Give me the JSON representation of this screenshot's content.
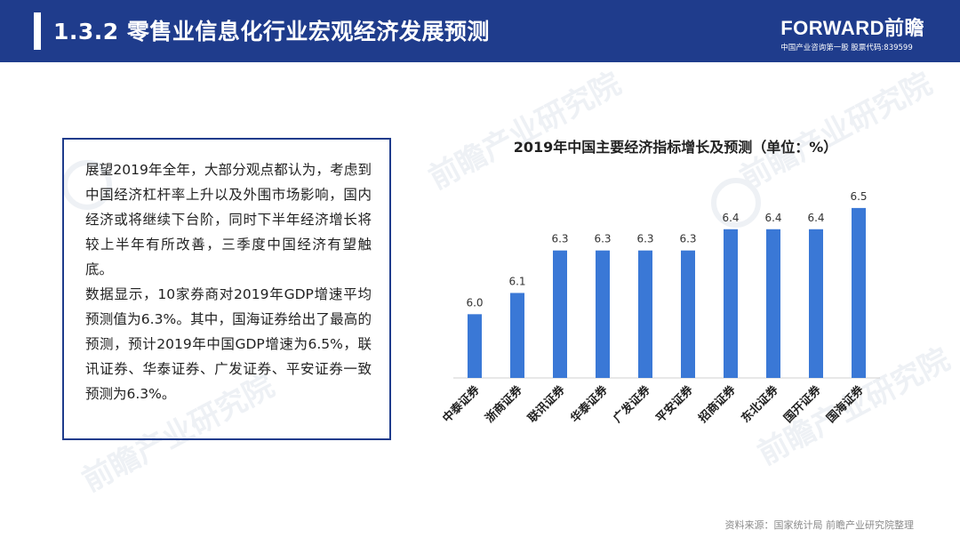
{
  "header": {
    "title": "1.3.2  零售业信息化行业宏观经济发展预测",
    "logo_brand": "FORWARD前瞻",
    "logo_tagline": "中国产业咨询第一股  股票代码:839599"
  },
  "body_text": {
    "paragraph1": "展望2019年全年，大部分观点都认为，考虑到中国经济杠杆率上升以及外围市场影响，国内经济或将继续下台阶，同时下半年经济增长将较上半年有所改善，三季度中国经济有望触底。",
    "paragraph2": "数据显示，10家券商对2019年GDP增速平均预测值为6.3%。其中，国海证券给出了最高的预测，预计2019年中国GDP增速为6.5%，联讯证券、华泰证券、广发证券、平安证券一致预测为6.3%。"
  },
  "chart_data": {
    "type": "bar",
    "title": "2019年中国主要经济指标增长及预测（单位：%）",
    "categories": [
      "中泰证券",
      "浙商证券",
      "联讯证券",
      "华泰证券",
      "广发证券",
      "平安证券",
      "招商证券",
      "东北证券",
      "国开证券",
      "国海证券"
    ],
    "values": [
      6.0,
      6.1,
      6.3,
      6.3,
      6.3,
      6.3,
      6.4,
      6.4,
      6.4,
      6.5
    ],
    "value_labels": [
      "6.0",
      "6.1",
      "6.3",
      "6.3",
      "6.3",
      "6.3",
      "6.4",
      "6.4",
      "6.4",
      "6.5"
    ],
    "ylim": [
      5.7,
      6.6
    ],
    "bar_color": "#3a78d6",
    "grid": false
  },
  "watermark": "前瞻产业研究院",
  "source": "资料来源：国家统计局 前瞻产业研究院整理",
  "colors": {
    "header_bg": "#1f3c8c",
    "bar": "#3a78d6"
  }
}
